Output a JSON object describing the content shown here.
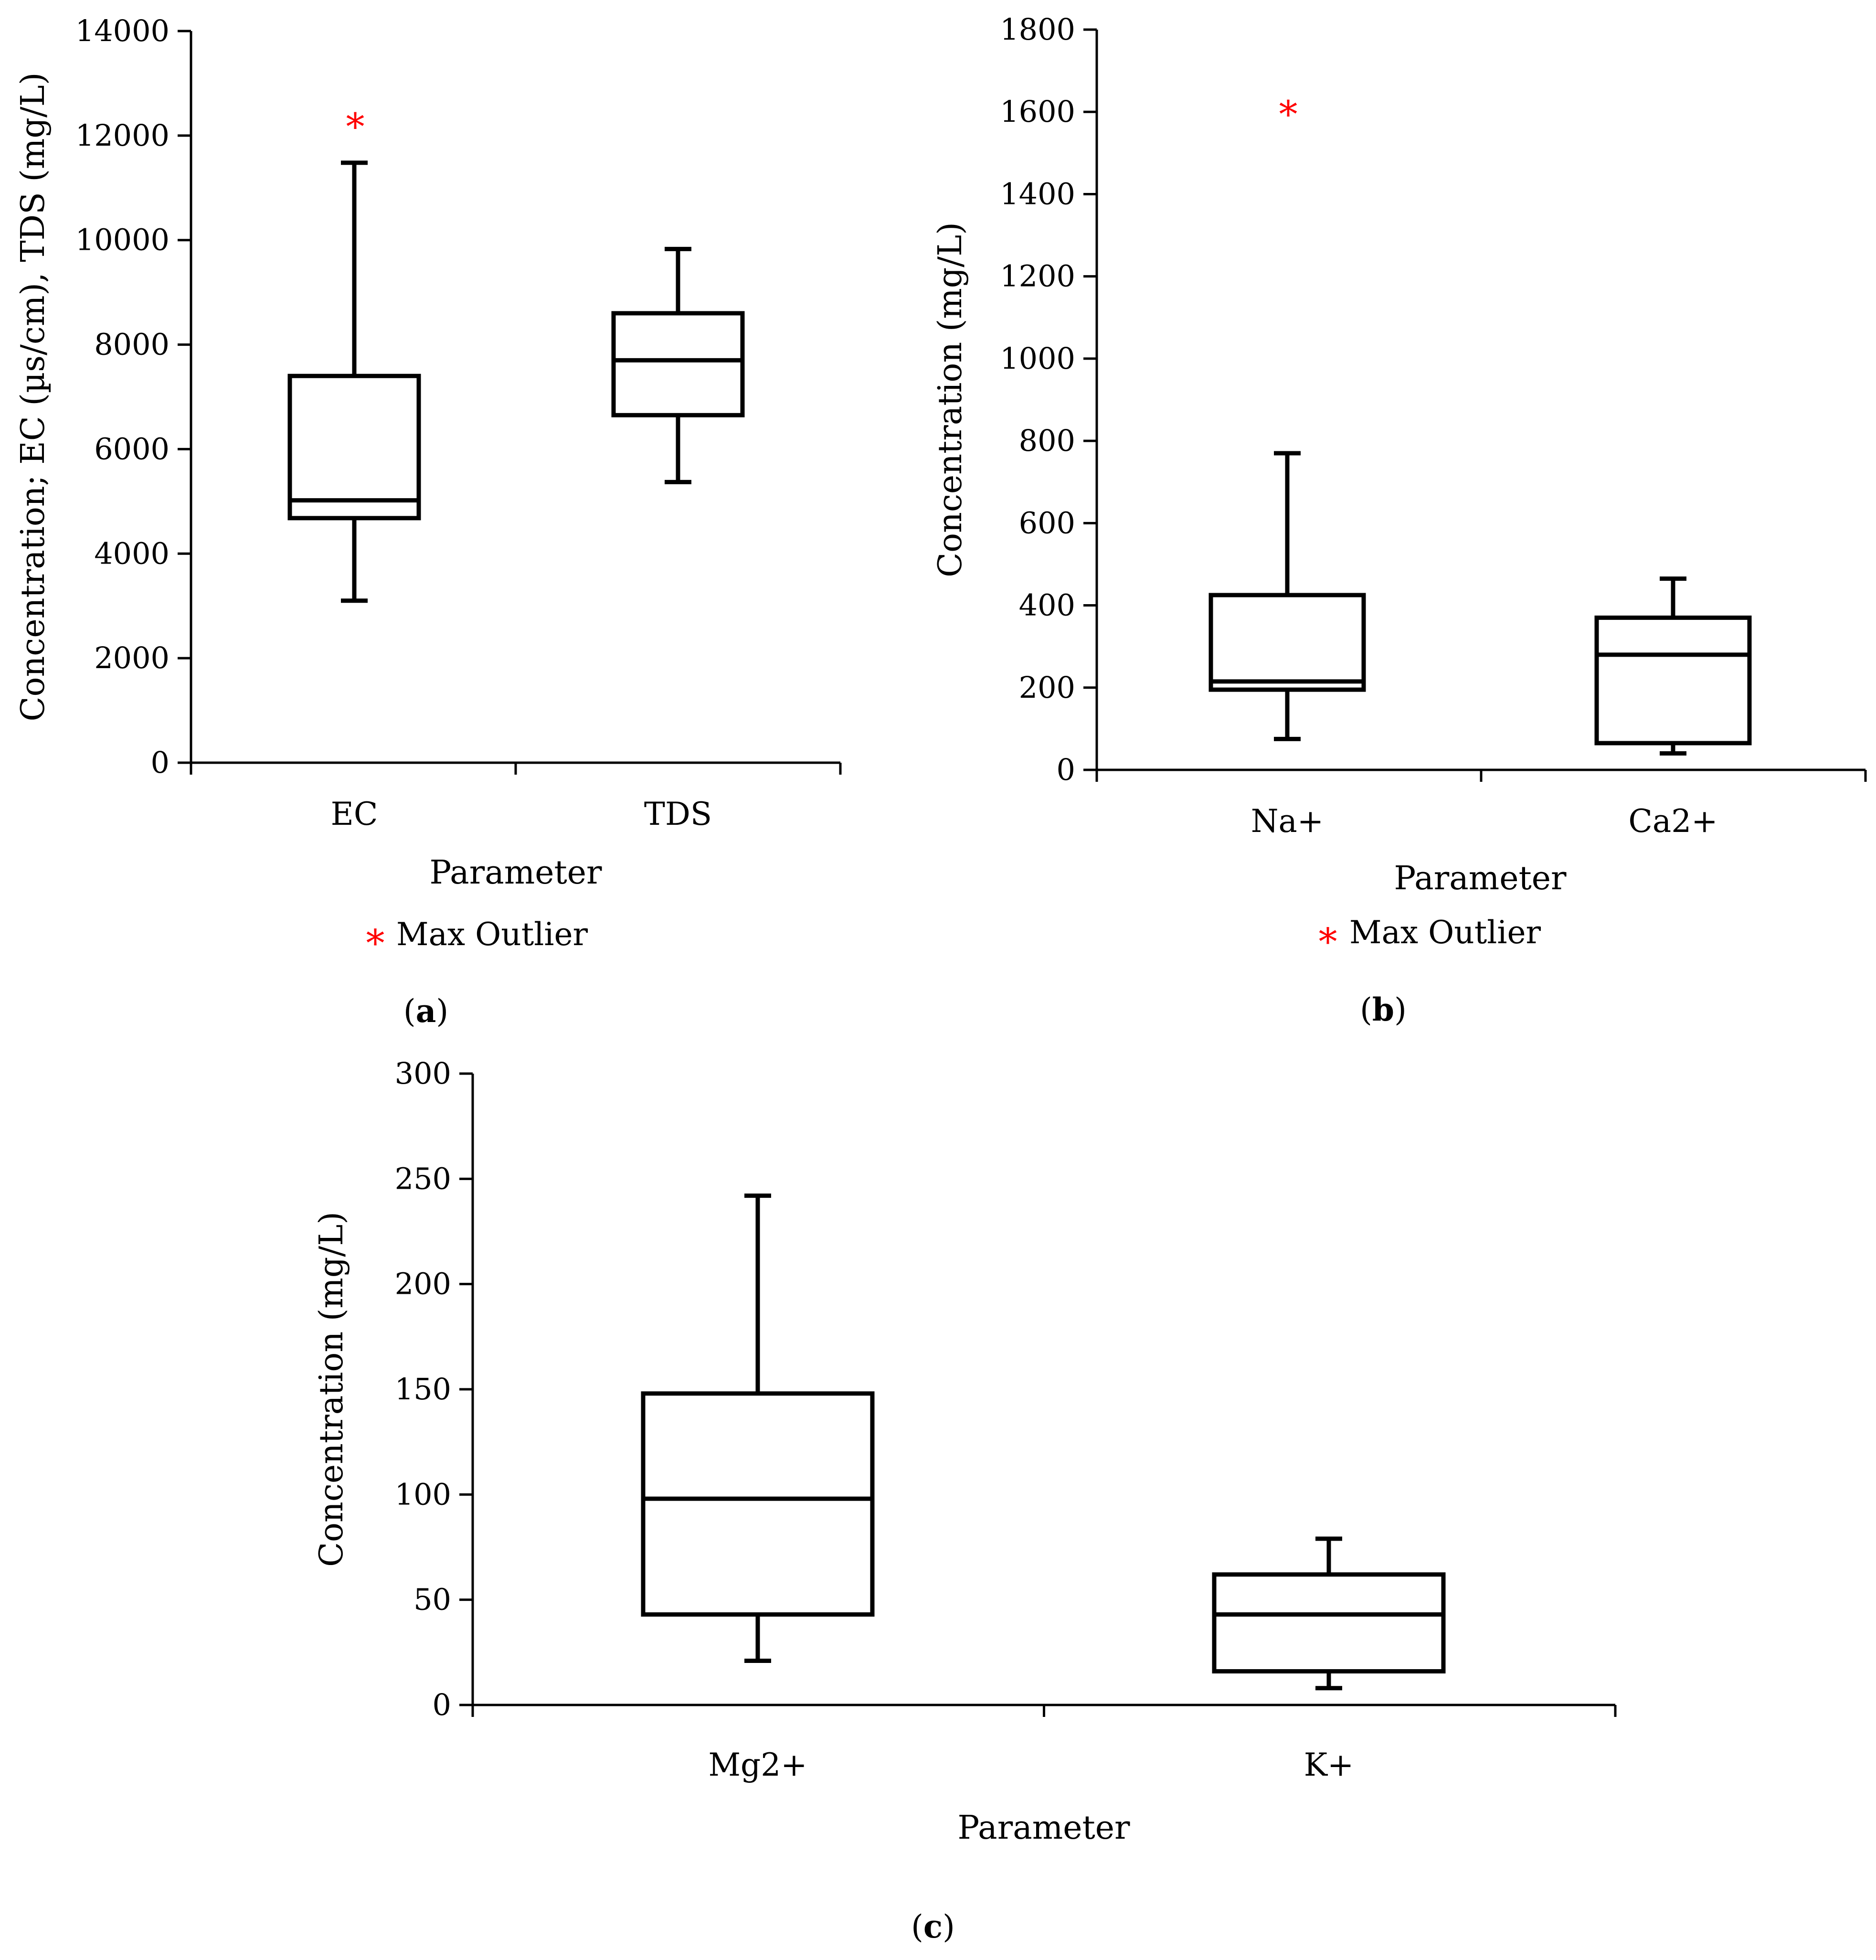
{
  "colors": {
    "outlier": "#ff0000",
    "axis": "#000000"
  },
  "chart_data": [
    {
      "id": "a",
      "type": "box",
      "panel_label": "a",
      "xlabel": "Parameter",
      "ylabel": "Concentration; EC (µs/cm), TDS (mg/L)",
      "ylim": [
        0,
        14000
      ],
      "yticks": [
        0,
        2000,
        4000,
        6000,
        8000,
        10000,
        12000,
        14000
      ],
      "legend": {
        "marker": "*",
        "label": "Max Outlier"
      },
      "categories": [
        "EC",
        "TDS"
      ],
      "boxes": [
        {
          "name": "EC",
          "min": 3100,
          "q1": 4680,
          "median": 5020,
          "q3": 7400,
          "max": 11480,
          "outlier": 12330
        },
        {
          "name": "TDS",
          "min": 5370,
          "q1": 6650,
          "median": 7700,
          "q3": 8600,
          "max": 9830,
          "outlier": null
        }
      ]
    },
    {
      "id": "b",
      "type": "box",
      "panel_label": "b",
      "xlabel": "Parameter",
      "ylabel": "Concentration (mg/L)",
      "ylim": [
        0,
        1800
      ],
      "yticks": [
        0,
        200,
        400,
        600,
        800,
        1000,
        1200,
        1400,
        1600,
        1800
      ],
      "legend": {
        "marker": "*",
        "label": "Max Outlier"
      },
      "categories": [
        "Na+",
        "Ca2+"
      ],
      "boxes": [
        {
          "name": "Na+",
          "min": 75,
          "q1": 195,
          "median": 215,
          "q3": 425,
          "max": 770,
          "outlier": 1615
        },
        {
          "name": "Ca2+",
          "min": 40,
          "q1": 65,
          "median": 280,
          "q3": 370,
          "max": 465,
          "outlier": null
        }
      ]
    },
    {
      "id": "c",
      "type": "box",
      "panel_label": "c",
      "xlabel": "Parameter",
      "ylabel": "Concentration (mg/L)",
      "ylim": [
        0,
        300
      ],
      "yticks": [
        0,
        50,
        100,
        150,
        200,
        250,
        300
      ],
      "legend": null,
      "categories": [
        "Mg2+",
        "K+"
      ],
      "boxes": [
        {
          "name": "Mg2+",
          "min": 21,
          "q1": 43,
          "median": 98,
          "q3": 148,
          "max": 242,
          "outlier": null
        },
        {
          "name": "K+",
          "min": 8,
          "q1": 16,
          "median": 43,
          "q3": 62,
          "max": 79,
          "outlier": null
        }
      ]
    }
  ]
}
